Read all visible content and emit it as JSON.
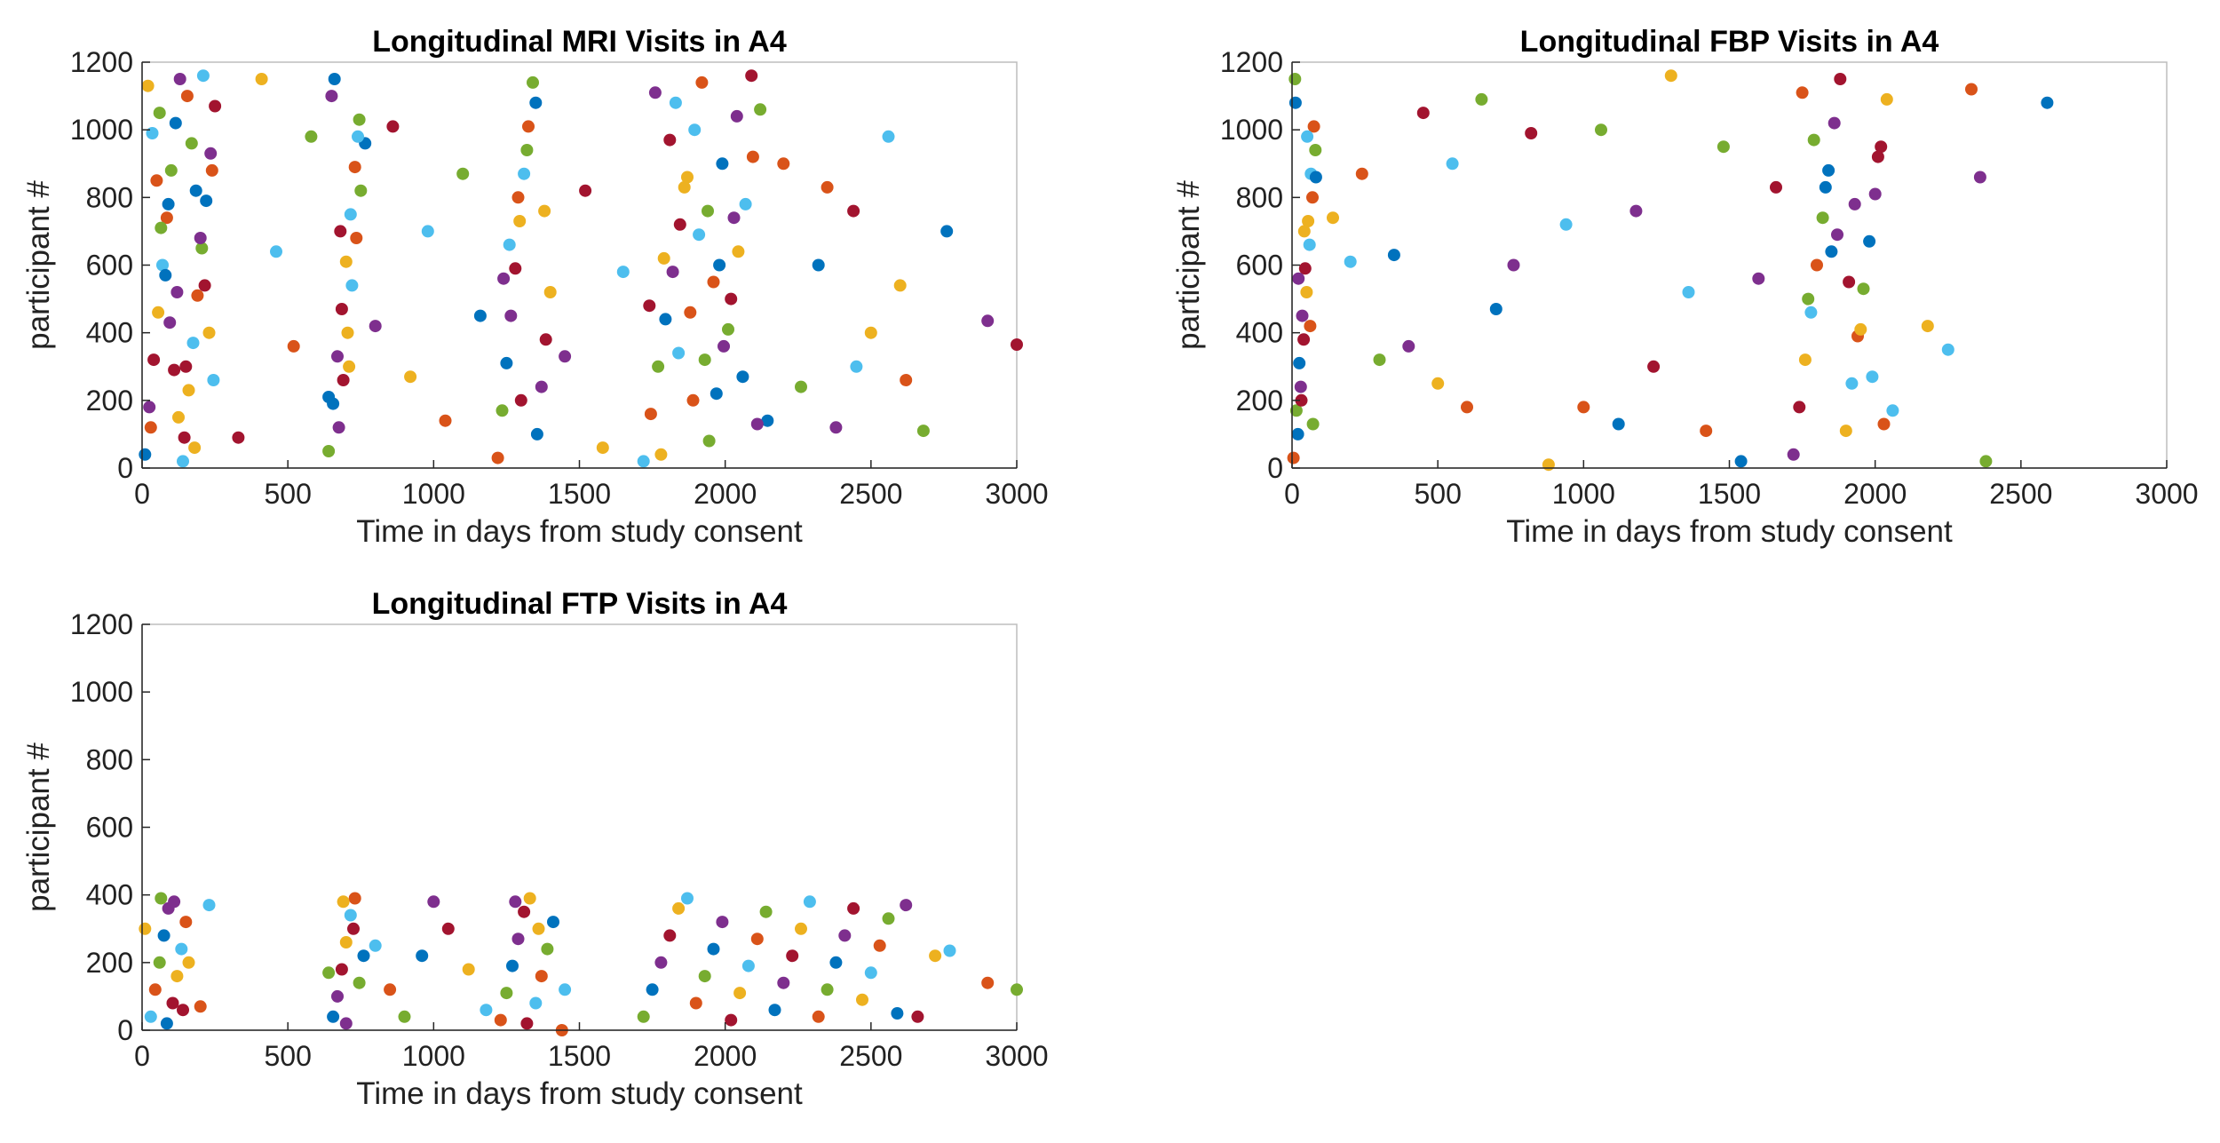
{
  "chart_data": [
    {
      "type": "scatter",
      "title": "Longitudinal MRI Visits in A4",
      "xlabel": "Time in days from study consent",
      "ylabel": "participant #",
      "xlim": [
        0,
        3000
      ],
      "ylim": [
        0,
        1200
      ],
      "xticks": [
        "0",
        "500",
        "1000",
        "1500",
        "2000",
        "2500",
        "3000"
      ],
      "yticks": [
        "0",
        "200",
        "400",
        "600",
        "800",
        "1000",
        "1200"
      ],
      "grid": false,
      "palette": [
        "#0072BD",
        "#D95319",
        "#EDB120",
        "#7E2F8E",
        "#77AC30",
        "#4DBEEE",
        "#A2142F"
      ],
      "points": [
        [
          10,
          40
        ],
        [
          25,
          180
        ],
        [
          40,
          320
        ],
        [
          55,
          460
        ],
        [
          70,
          600
        ],
        [
          85,
          740
        ],
        [
          100,
          880
        ],
        [
          115,
          1020
        ],
        [
          130,
          1150
        ],
        [
          145,
          90
        ],
        [
          160,
          230
        ],
        [
          175,
          370
        ],
        [
          190,
          510
        ],
        [
          205,
          650
        ],
        [
          220,
          790
        ],
        [
          235,
          930
        ],
        [
          250,
          1070
        ],
        [
          20,
          1130
        ],
        [
          35,
          990
        ],
        [
          50,
          850
        ],
        [
          65,
          710
        ],
        [
          80,
          570
        ],
        [
          95,
          430
        ],
        [
          110,
          290
        ],
        [
          125,
          150
        ],
        [
          140,
          20
        ],
        [
          155,
          1100
        ],
        [
          170,
          960
        ],
        [
          185,
          820
        ],
        [
          200,
          680
        ],
        [
          215,
          540
        ],
        [
          230,
          400
        ],
        [
          245,
          260
        ],
        [
          30,
          120
        ],
        [
          60,
          1050
        ],
        [
          90,
          780
        ],
        [
          120,
          520
        ],
        [
          150,
          300
        ],
        [
          180,
          60
        ],
        [
          210,
          1160
        ],
        [
          240,
          880
        ],
        [
          640,
          50
        ],
        [
          655,
          190
        ],
        [
          670,
          330
        ],
        [
          685,
          470
        ],
        [
          700,
          610
        ],
        [
          715,
          750
        ],
        [
          730,
          890
        ],
        [
          745,
          1030
        ],
        [
          660,
          1150
        ],
        [
          675,
          120
        ],
        [
          690,
          260
        ],
        [
          705,
          400
        ],
        [
          720,
          540
        ],
        [
          735,
          680
        ],
        [
          750,
          820
        ],
        [
          765,
          960
        ],
        [
          650,
          1100
        ],
        [
          680,
          700
        ],
        [
          710,
          300
        ],
        [
          740,
          980
        ],
        [
          1220,
          30
        ],
        [
          1235,
          170
        ],
        [
          1250,
          310
        ],
        [
          1265,
          450
        ],
        [
          1280,
          590
        ],
        [
          1295,
          730
        ],
        [
          1310,
          870
        ],
        [
          1325,
          1010
        ],
        [
          1340,
          1140
        ],
        [
          1355,
          100
        ],
        [
          1370,
          240
        ],
        [
          1385,
          380
        ],
        [
          1400,
          520
        ],
        [
          1260,
          660
        ],
        [
          1290,
          800
        ],
        [
          1320,
          940
        ],
        [
          1350,
          1080
        ],
        [
          1240,
          560
        ],
        [
          1300,
          200
        ],
        [
          1380,
          760
        ],
        [
          1720,
          20
        ],
        [
          1745,
          160
        ],
        [
          1770,
          300
        ],
        [
          1795,
          440
        ],
        [
          1820,
          580
        ],
        [
          1845,
          720
        ],
        [
          1870,
          860
        ],
        [
          1895,
          1000
        ],
        [
          1920,
          1140
        ],
        [
          1945,
          80
        ],
        [
          1970,
          220
        ],
        [
          1995,
          360
        ],
        [
          2020,
          500
        ],
        [
          2045,
          640
        ],
        [
          2070,
          780
        ],
        [
          2095,
          920
        ],
        [
          2120,
          1060
        ],
        [
          2145,
          140
        ],
        [
          1760,
          1110
        ],
        [
          1810,
          970
        ],
        [
          1860,
          830
        ],
        [
          1910,
          690
        ],
        [
          1960,
          550
        ],
        [
          2010,
          410
        ],
        [
          2060,
          270
        ],
        [
          2110,
          130
        ],
        [
          1740,
          480
        ],
        [
          1790,
          620
        ],
        [
          1840,
          340
        ],
        [
          1890,
          200
        ],
        [
          1940,
          760
        ],
        [
          1990,
          900
        ],
        [
          2040,
          1040
        ],
        [
          2090,
          1160
        ],
        [
          1780,
          40
        ],
        [
          1830,
          1080
        ],
        [
          1880,
          460
        ],
        [
          1930,
          320
        ],
        [
          1980,
          600
        ],
        [
          2030,
          740
        ],
        [
          330,
          90
        ],
        [
          410,
          1150
        ],
        [
          460,
          640
        ],
        [
          520,
          360
        ],
        [
          580,
          980
        ],
        [
          640,
          210
        ],
        [
          800,
          420
        ],
        [
          860,
          1010
        ],
        [
          920,
          270
        ],
        [
          980,
          700
        ],
        [
          1040,
          140
        ],
        [
          1100,
          870
        ],
        [
          1160,
          450
        ],
        [
          1450,
          330
        ],
        [
          1520,
          820
        ],
        [
          1580,
          60
        ],
        [
          1650,
          580
        ],
        [
          2200,
          900
        ],
        [
          2260,
          240
        ],
        [
          2320,
          600
        ],
        [
          2380,
          120
        ],
        [
          2440,
          760
        ],
        [
          2500,
          400
        ],
        [
          2560,
          980
        ],
        [
          2620,
          260
        ],
        [
          2680,
          110
        ],
        [
          2760,
          700
        ],
        [
          2900,
          435
        ],
        [
          3000,
          365
        ],
        [
          2600,
          540
        ],
        [
          2450,
          300
        ],
        [
          2350,
          830
        ]
      ]
    },
    {
      "type": "scatter",
      "title": "Longitudinal FBP Visits in A4",
      "xlabel": "Time in days from study consent",
      "ylabel": "participant #",
      "xlim": [
        0,
        3000
      ],
      "ylim": [
        0,
        1200
      ],
      "xticks": [
        "0",
        "500",
        "1000",
        "1500",
        "2000",
        "2500",
        "3000"
      ],
      "yticks": [
        "0",
        "200",
        "400",
        "600",
        "800",
        "1000",
        "1200"
      ],
      "grid": false,
      "palette": [
        "#0072BD",
        "#D95319",
        "#EDB120",
        "#7E2F8E",
        "#77AC30",
        "#4DBEEE",
        "#A2142F"
      ],
      "points": [
        [
          5,
          30
        ],
        [
          15,
          170
        ],
        [
          25,
          310
        ],
        [
          35,
          450
        ],
        [
          45,
          590
        ],
        [
          55,
          730
        ],
        [
          65,
          870
        ],
        [
          75,
          1010
        ],
        [
          10,
          1150
        ],
        [
          20,
          100
        ],
        [
          30,
          240
        ],
        [
          40,
          380
        ],
        [
          50,
          520
        ],
        [
          60,
          660
        ],
        [
          70,
          800
        ],
        [
          80,
          940
        ],
        [
          12,
          1080
        ],
        [
          22,
          560
        ],
        [
          32,
          200
        ],
        [
          42,
          700
        ],
        [
          52,
          980
        ],
        [
          62,
          420
        ],
        [
          72,
          130
        ],
        [
          82,
          860
        ],
        [
          1720,
          40
        ],
        [
          1740,
          180
        ],
        [
          1760,
          320
        ],
        [
          1780,
          460
        ],
        [
          1800,
          600
        ],
        [
          1820,
          740
        ],
        [
          1840,
          880
        ],
        [
          1860,
          1020
        ],
        [
          1880,
          1150
        ],
        [
          1900,
          110
        ],
        [
          1920,
          250
        ],
        [
          1940,
          390
        ],
        [
          1960,
          530
        ],
        [
          1980,
          670
        ],
        [
          2000,
          810
        ],
        [
          2020,
          950
        ],
        [
          2040,
          1090
        ],
        [
          2060,
          170
        ],
        [
          1750,
          1110
        ],
        [
          1790,
          970
        ],
        [
          1830,
          830
        ],
        [
          1870,
          690
        ],
        [
          1910,
          550
        ],
        [
          1950,
          410
        ],
        [
          1990,
          270
        ],
        [
          2030,
          130
        ],
        [
          1770,
          500
        ],
        [
          1850,
          640
        ],
        [
          1930,
          780
        ],
        [
          2010,
          920
        ],
        [
          140,
          740
        ],
        [
          200,
          610
        ],
        [
          240,
          870
        ],
        [
          300,
          320
        ],
        [
          350,
          630
        ],
        [
          400,
          360
        ],
        [
          450,
          1050
        ],
        [
          500,
          250
        ],
        [
          550,
          900
        ],
        [
          600,
          180
        ],
        [
          650,
          1090
        ],
        [
          700,
          470
        ],
        [
          760,
          600
        ],
        [
          820,
          990
        ],
        [
          880,
          10
        ],
        [
          940,
          720
        ],
        [
          1000,
          180
        ],
        [
          1060,
          1000
        ],
        [
          1120,
          130
        ],
        [
          1180,
          760
        ],
        [
          1240,
          300
        ],
        [
          1300,
          1160
        ],
        [
          1360,
          520
        ],
        [
          1420,
          110
        ],
        [
          1480,
          950
        ],
        [
          1540,
          20
        ],
        [
          1600,
          560
        ],
        [
          1660,
          830
        ],
        [
          2180,
          420
        ],
        [
          2250,
          350
        ],
        [
          2330,
          1120
        ],
        [
          2380,
          20
        ],
        [
          2590,
          1080
        ],
        [
          2360,
          860
        ]
      ]
    },
    {
      "type": "scatter",
      "title": "Longitudinal FTP Visits in A4",
      "xlabel": "Time in days from study consent",
      "ylabel": "participant #",
      "xlim": [
        0,
        3000
      ],
      "ylim": [
        0,
        1200
      ],
      "xticks": [
        "0",
        "500",
        "1000",
        "1500",
        "2000",
        "2500",
        "3000"
      ],
      "yticks": [
        "0",
        "200",
        "400",
        "600",
        "800",
        "1000",
        "1200"
      ],
      "grid": false,
      "palette": [
        "#0072BD",
        "#D95319",
        "#EDB120",
        "#7E2F8E",
        "#77AC30",
        "#4DBEEE",
        "#A2142F"
      ],
      "points": [
        [
          10,
          300
        ],
        [
          30,
          40
        ],
        [
          45,
          120
        ],
        [
          60,
          200
        ],
        [
          75,
          280
        ],
        [
          90,
          360
        ],
        [
          105,
          80
        ],
        [
          120,
          160
        ],
        [
          135,
          240
        ],
        [
          150,
          320
        ],
        [
          65,
          390
        ],
        [
          85,
          20
        ],
        [
          110,
          380
        ],
        [
          140,
          60
        ],
        [
          160,
          200
        ],
        [
          230,
          370
        ],
        [
          200,
          70
        ],
        [
          640,
          170
        ],
        [
          655,
          40
        ],
        [
          670,
          100
        ],
        [
          685,
          180
        ],
        [
          700,
          260
        ],
        [
          715,
          340
        ],
        [
          730,
          390
        ],
        [
          745,
          140
        ],
        [
          760,
          220
        ],
        [
          700,
          20
        ],
        [
          725,
          300
        ],
        [
          690,
          380
        ],
        [
          800,
          250
        ],
        [
          850,
          120
        ],
        [
          900,
          40
        ],
        [
          960,
          220
        ],
        [
          1000,
          380
        ],
        [
          1050,
          300
        ],
        [
          1120,
          180
        ],
        [
          1180,
          60
        ],
        [
          1230,
          30
        ],
        [
          1250,
          110
        ],
        [
          1270,
          190
        ],
        [
          1290,
          270
        ],
        [
          1310,
          350
        ],
        [
          1330,
          390
        ],
        [
          1350,
          80
        ],
        [
          1370,
          160
        ],
        [
          1390,
          240
        ],
        [
          1410,
          320
        ],
        [
          1280,
          380
        ],
        [
          1320,
          20
        ],
        [
          1360,
          300
        ],
        [
          1450,
          120
        ],
        [
          1440,
          0
        ],
        [
          1720,
          40
        ],
        [
          1750,
          120
        ],
        [
          1780,
          200
        ],
        [
          1810,
          280
        ],
        [
          1840,
          360
        ],
        [
          1870,
          390
        ],
        [
          1900,
          80
        ],
        [
          1930,
          160
        ],
        [
          1960,
          240
        ],
        [
          1990,
          320
        ],
        [
          2020,
          30
        ],
        [
          2050,
          110
        ],
        [
          2080,
          190
        ],
        [
          2110,
          270
        ],
        [
          2140,
          350
        ],
        [
          2170,
          60
        ],
        [
          2200,
          140
        ],
        [
          2230,
          220
        ],
        [
          2260,
          300
        ],
        [
          2290,
          380
        ],
        [
          2320,
          40
        ],
        [
          2350,
          120
        ],
        [
          2380,
          200
        ],
        [
          2410,
          280
        ],
        [
          2440,
          360
        ],
        [
          2470,
          90
        ],
        [
          2500,
          170
        ],
        [
          2530,
          250
        ],
        [
          2560,
          330
        ],
        [
          2590,
          50
        ],
        [
          2620,
          370
        ],
        [
          2660,
          40
        ],
        [
          2720,
          220
        ],
        [
          2770,
          235
        ],
        [
          2900,
          140
        ],
        [
          3000,
          120
        ]
      ]
    }
  ]
}
